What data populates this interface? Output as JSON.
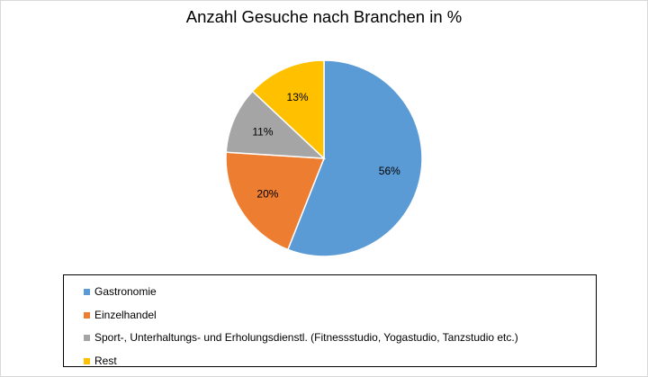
{
  "chart_data": {
    "type": "pie",
    "title": "Anzahl Gesuche nach Branchen in %",
    "slices": [
      {
        "label": "Gastronomie",
        "value": 56,
        "display": "56%",
        "color": "#5B9BD5"
      },
      {
        "label": "Einzelhandel",
        "value": 20,
        "display": "20%",
        "color": "#ED7D31"
      },
      {
        "label": "Sport-, Unterhaltungs- und Erholungsdienstl. (Fitnessstudio, Yogastudio, Tanzstudio etc.)",
        "value": 11,
        "display": "11%",
        "color": "#A5A5A5"
      },
      {
        "label": "Rest",
        "value": 13,
        "display": "13%",
        "color": "#FFC000"
      }
    ],
    "legend_position": "bottom"
  }
}
